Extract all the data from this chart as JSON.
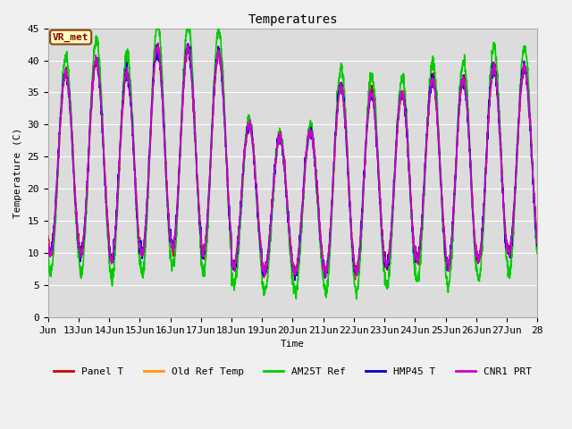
{
  "title": "Temperatures",
  "xlabel": "Time",
  "ylabel": "Temperature (C)",
  "annotation": "VR_met",
  "ylim": [
    0,
    45
  ],
  "xlim": [
    12,
    28
  ],
  "fig_bg": "#f0f0f0",
  "plot_bg": "#dcdcdc",
  "legend_labels": [
    "Panel T",
    "Old Ref Temp",
    "AM25T Ref",
    "HMP45 T",
    "CNR1 PRT"
  ],
  "legend_colors": [
    "#cc0000",
    "#ff9900",
    "#00cc00",
    "#0000cc",
    "#cc00cc"
  ],
  "start_day": 12,
  "n_days": 16,
  "pts_per_day": 144,
  "peak_hour": 0.58,
  "base_min": 10.0,
  "base_amp": 26.0,
  "am25t_extra_amp": 5.0,
  "am25t_lower_min": 3.0,
  "day_amp_var": [
    2,
    4,
    3,
    6,
    5,
    5,
    -4,
    -5,
    -4,
    3,
    2,
    1,
    2,
    3,
    4,
    3
  ],
  "day_min_var": [
    0,
    0,
    -1,
    0,
    1,
    0,
    -2,
    -3,
    -3,
    -3,
    -3,
    -2,
    -1,
    -2,
    -1,
    0
  ],
  "hmp_phase": 0.05,
  "cnr_phase": 0.03,
  "title_fontsize": 10,
  "axis_fontsize": 8,
  "label_fontsize": 8,
  "annot_fontsize": 8,
  "legend_fontsize": 8,
  "line_width": 1.2
}
